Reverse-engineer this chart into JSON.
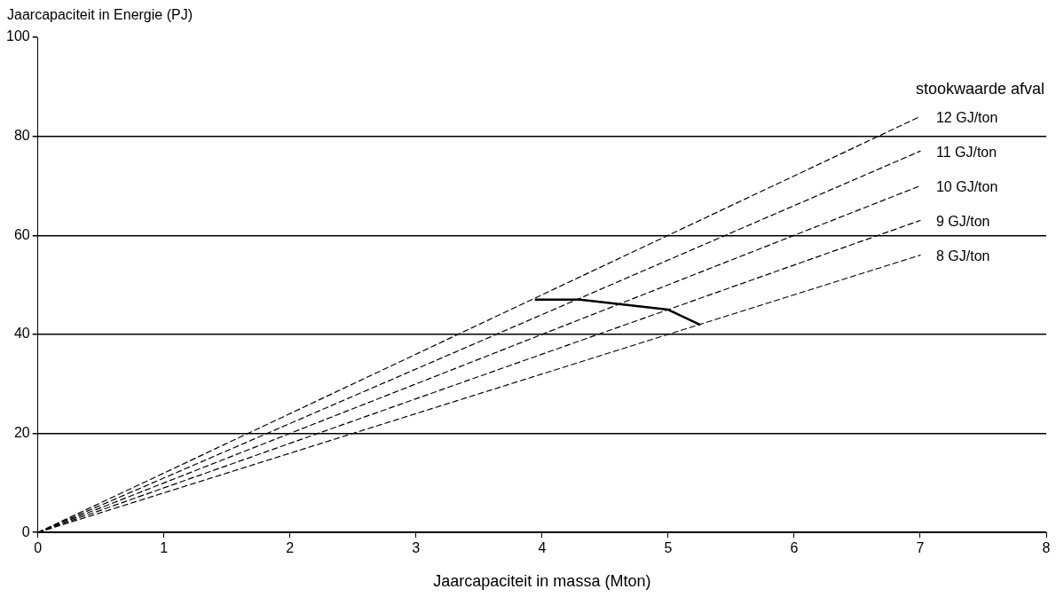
{
  "chart_data": {
    "type": "line",
    "xlabel": "Jaarcapaciteit in massa (Mton)",
    "ylabel": "Jaarcapaciteit in Energie (PJ)",
    "legend_title": "stookwaarde afval",
    "x": [
      0,
      7
    ],
    "series": [
      {
        "name": "12 GJ/ton",
        "color": "#000000",
        "values": [
          0,
          84
        ]
      },
      {
        "name": "11 GJ/ton",
        "color": "#000000",
        "values": [
          0,
          77
        ]
      },
      {
        "name": "10 GJ/ton",
        "color": "#000000",
        "values": [
          0,
          70
        ]
      },
      {
        "name": "9 GJ/ton",
        "color": "#000000",
        "values": [
          0,
          63
        ]
      },
      {
        "name": "8 GJ/ton",
        "color": "#000000",
        "values": [
          0,
          56
        ]
      },
      {
        "color": "#000000",
        "x": [
          3.95,
          4.3,
          5,
          5.25
        ],
        "values": [
          47,
          47,
          45,
          42
        ],
        "line_style": "solid"
      }
    ],
    "xlim": [
      0,
      8
    ],
    "xticks": [
      0,
      1,
      2,
      3,
      4,
      5,
      6,
      7,
      8
    ],
    "ylim": [
      0,
      100
    ],
    "yticks": [
      0,
      20,
      40,
      60,
      80,
      100
    ],
    "grid": "y",
    "legend": false,
    "marker": "none",
    "line_style": "dashed"
  }
}
